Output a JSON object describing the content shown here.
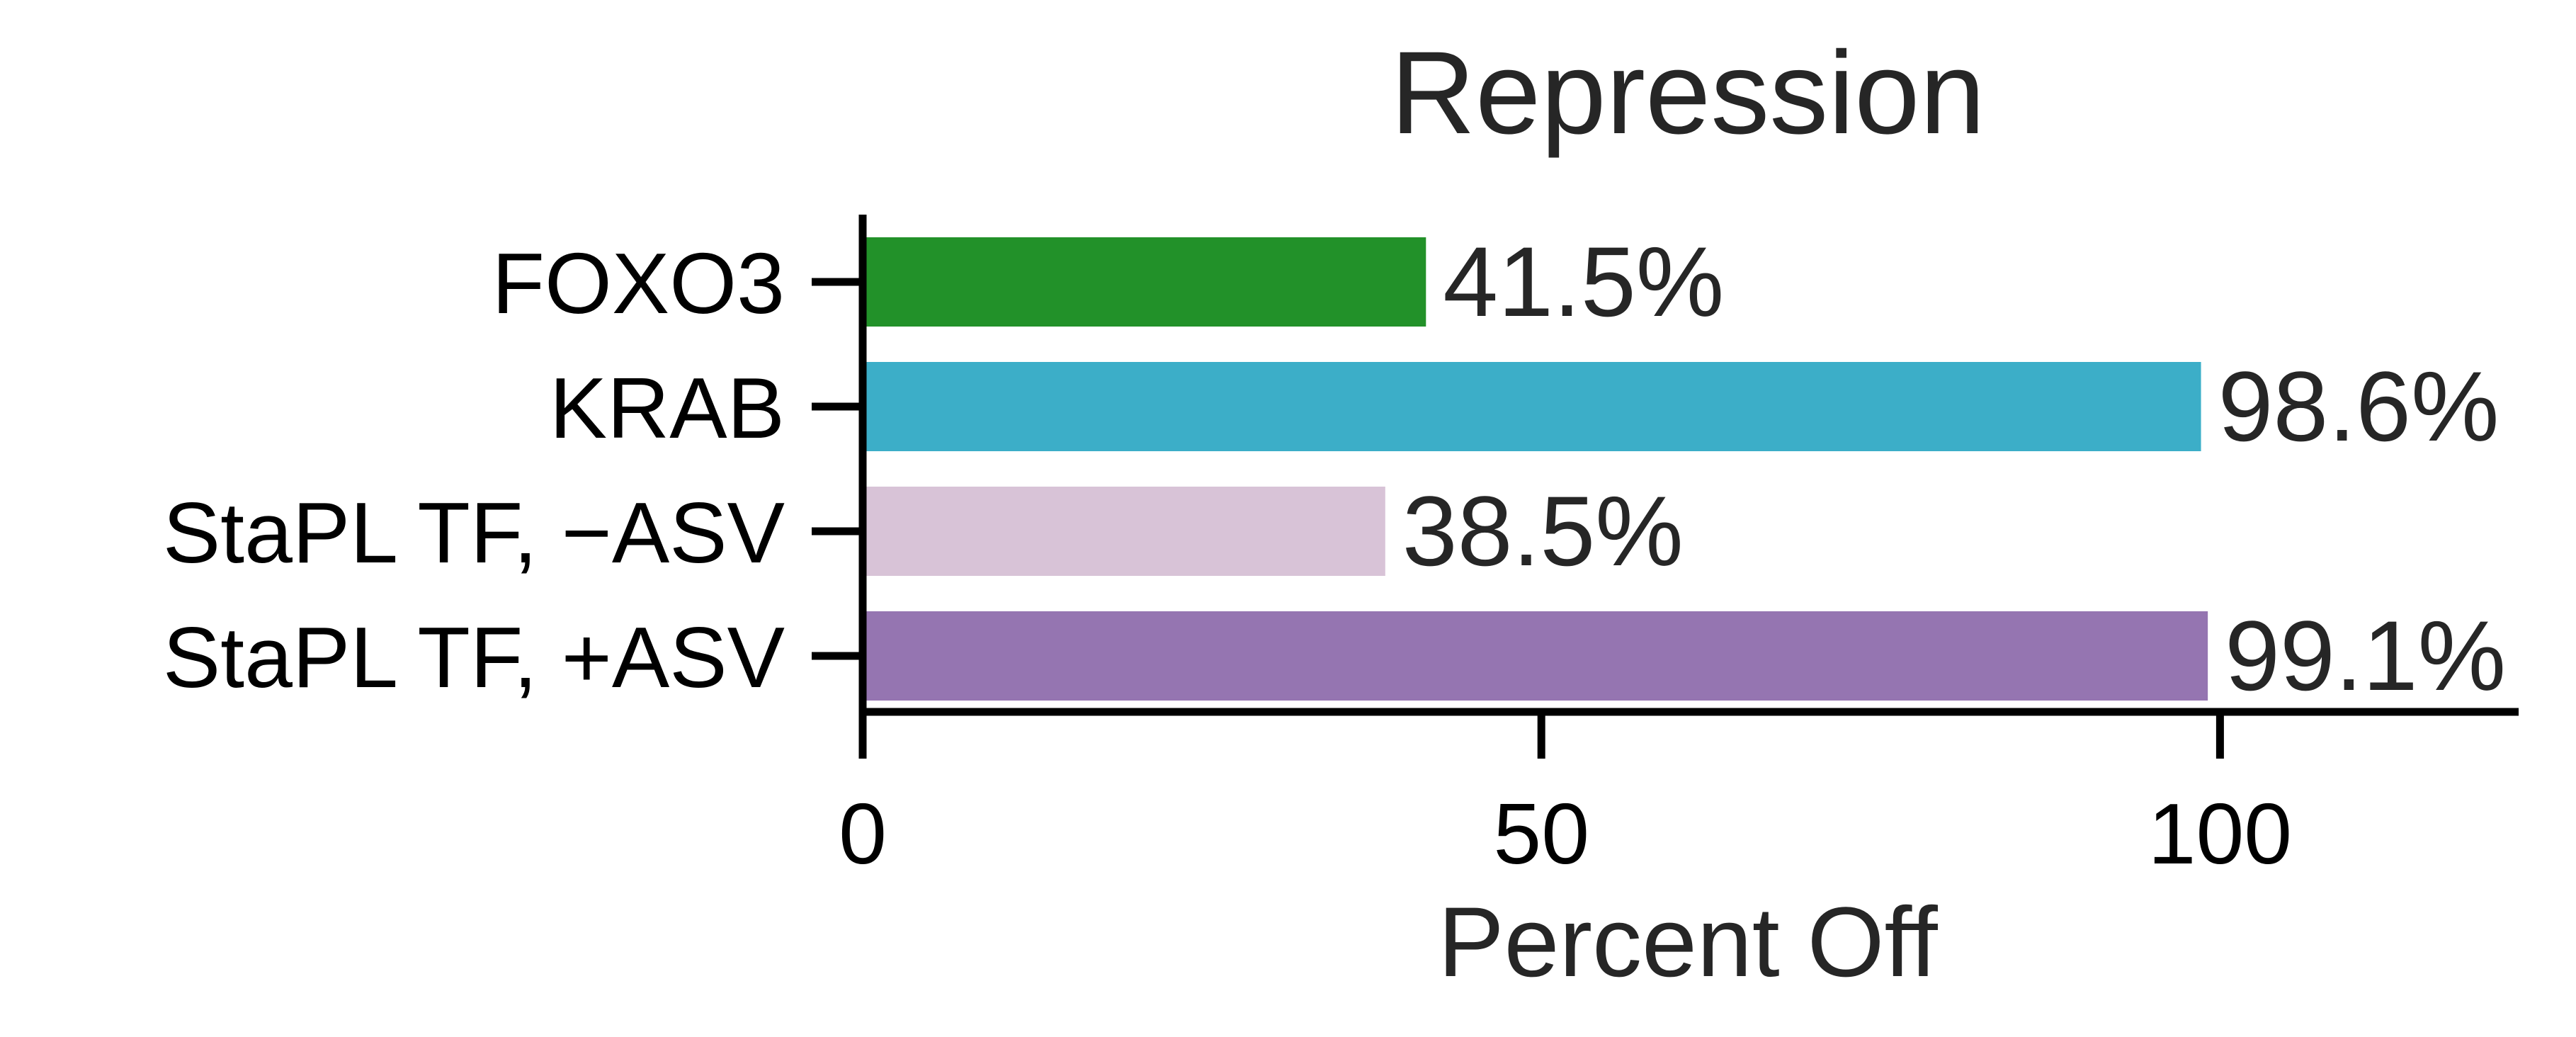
{
  "chart_data": {
    "type": "bar",
    "orientation": "horizontal",
    "title": "Repression",
    "xlabel": "Percent Off",
    "ylabel": "",
    "xlim": [
      0,
      122
    ],
    "xticks": [
      0,
      50,
      100
    ],
    "grid": false,
    "categories": [
      "FOXO3",
      "KRAB",
      "StaPL TF, −ASV",
      "StaPL TF, +ASV"
    ],
    "values": [
      41.5,
      98.6,
      38.5,
      99.1
    ],
    "value_labels": [
      "41.5%",
      "98.6%",
      "38.5%",
      "99.1%"
    ],
    "colors": [
      "#229129",
      "#3CAEC8",
      "#D8C3D7",
      "#9575B1"
    ]
  }
}
